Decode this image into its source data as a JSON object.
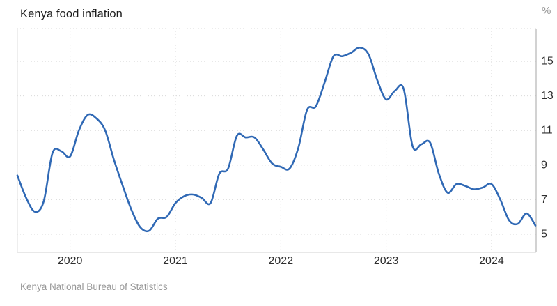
{
  "header": {
    "title": "Kenya food inflation"
  },
  "footer": {
    "source": "Kenya National Bureau of Statistics"
  },
  "colors": {
    "line": "#3069b5",
    "grid": "#d9d9d9",
    "frame_light": "#dedede",
    "frame_bottom": "#d2d2d2",
    "axis": "#b3b3b3",
    "tick_label": "#2e2e2e",
    "muted_text": "#979797",
    "background": "#ffffff"
  },
  "chart_data": {
    "type": "line",
    "title": "Kenya food inflation",
    "unit": "%",
    "source": "Kenya National Bureau of Statistics",
    "legend": "none",
    "grid": "dotted",
    "ylim": [
      3.95,
      16.9
    ],
    "yticks": [
      5,
      7,
      9,
      11,
      13,
      15
    ],
    "xticks": [
      {
        "label": "2020",
        "index": 6
      },
      {
        "label": "2021",
        "index": 18
      },
      {
        "label": "2022",
        "index": 30
      },
      {
        "label": "2023",
        "index": 42
      },
      {
        "label": "2024",
        "index": 54
      }
    ],
    "x": [
      "2019-07",
      "2019-08",
      "2019-09",
      "2019-10",
      "2019-11",
      "2019-12",
      "2020-01",
      "2020-02",
      "2020-03",
      "2020-04",
      "2020-05",
      "2020-06",
      "2020-07",
      "2020-08",
      "2020-09",
      "2020-10",
      "2020-11",
      "2020-12",
      "2021-01",
      "2021-02",
      "2021-03",
      "2021-04",
      "2021-05",
      "2021-06",
      "2021-07",
      "2021-08",
      "2021-09",
      "2021-10",
      "2021-11",
      "2021-12",
      "2022-01",
      "2022-02",
      "2022-03",
      "2022-04",
      "2022-05",
      "2022-06",
      "2022-07",
      "2022-08",
      "2022-09",
      "2022-10",
      "2022-11",
      "2022-12",
      "2023-01",
      "2023-02",
      "2023-03",
      "2023-04",
      "2023-05",
      "2023-06",
      "2023-07",
      "2023-08",
      "2023-09",
      "2023-10",
      "2023-11",
      "2023-12",
      "2024-01",
      "2024-02",
      "2024-03",
      "2024-04",
      "2024-05",
      "2024-06"
    ],
    "series": [
      {
        "name": "Kenya food inflation",
        "color": "#3069b5",
        "values": [
          8.4,
          7.1,
          6.3,
          6.9,
          9.7,
          9.8,
          9.5,
          11.0,
          11.9,
          11.7,
          11.0,
          9.3,
          7.8,
          6.4,
          5.4,
          5.2,
          5.9,
          6.0,
          6.8,
          7.2,
          7.3,
          7.1,
          6.8,
          8.5,
          8.8,
          10.7,
          10.6,
          10.6,
          9.9,
          9.1,
          8.9,
          8.8,
          10.0,
          12.2,
          12.4,
          13.8,
          15.3,
          15.3,
          15.5,
          15.8,
          15.4,
          13.9,
          12.8,
          13.3,
          13.4,
          10.1,
          10.2,
          10.3,
          8.5,
          7.4,
          7.9,
          7.8,
          7.6,
          7.7,
          7.9,
          7.0,
          5.8,
          5.6,
          6.2,
          5.5
        ]
      }
    ]
  }
}
